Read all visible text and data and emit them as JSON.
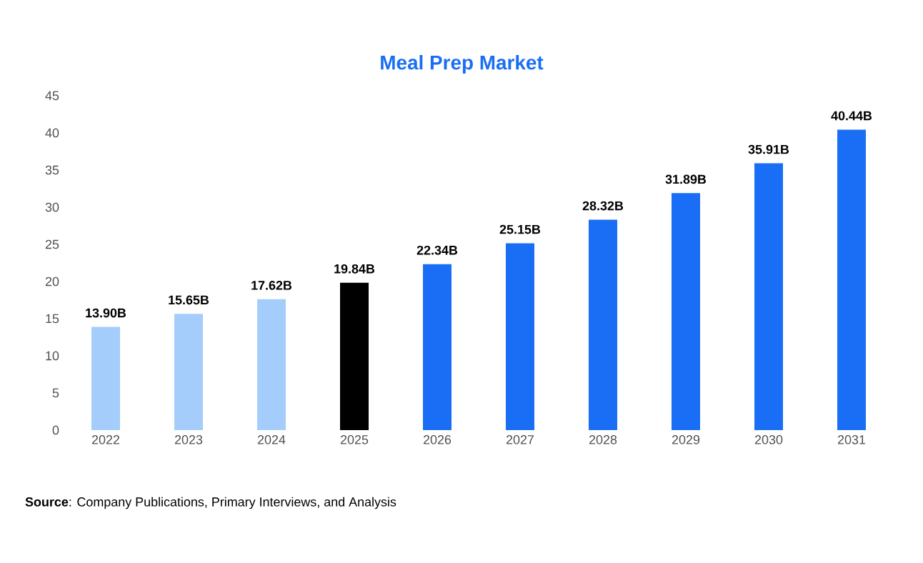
{
  "chart_data": {
    "type": "bar",
    "title": "Meal Prep Market",
    "categories": [
      "2022",
      "2023",
      "2024",
      "2025",
      "2026",
      "2027",
      "2028",
      "2029",
      "2030",
      "2031"
    ],
    "values": [
      13.9,
      15.65,
      17.62,
      19.84,
      22.34,
      25.15,
      28.32,
      31.89,
      35.91,
      40.44
    ],
    "value_labels": [
      "13.90B",
      "15.65B",
      "17.62B",
      "19.84B",
      "22.34B",
      "25.15B",
      "28.32B",
      "31.89B",
      "35.91B",
      "40.44B"
    ],
    "colors": [
      "#a4cdfb",
      "#a4cdfb",
      "#a4cdfb",
      "#000000",
      "#1a6ef5",
      "#1a6ef5",
      "#1a6ef5",
      "#1a6ef5",
      "#1a6ef5",
      "#1a6ef5"
    ],
    "ylim": [
      0,
      45
    ],
    "yticks": [
      0,
      5,
      10,
      15,
      20,
      25,
      30,
      35,
      40,
      45
    ],
    "annotations": [
      "**Source**: Company Publications, Primary Interviews, and Analysis"
    ]
  }
}
